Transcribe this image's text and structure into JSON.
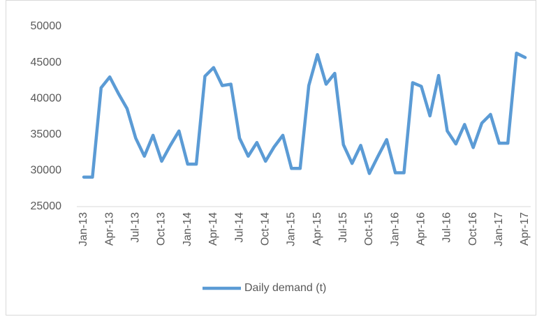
{
  "chart_data": {
    "type": "line",
    "categories": [
      "Jan-13",
      null,
      null,
      "Apr-13",
      null,
      null,
      "Jul-13",
      null,
      null,
      "Oct-13",
      null,
      null,
      "Jan-14",
      null,
      null,
      "Apr-14",
      null,
      null,
      "Jul-14",
      null,
      null,
      "Oct-14",
      null,
      null,
      "Jan-15",
      null,
      null,
      "Apr-15",
      null,
      null,
      "Jul-15",
      null,
      null,
      "Oct-15",
      null,
      null,
      "Jan-16",
      null,
      null,
      "Apr-16",
      null,
      null,
      "Jul-16",
      null,
      null,
      "Oct-16",
      null,
      null,
      "Jan-17",
      null,
      null,
      "Apr-17"
    ],
    "series": [
      {
        "name": "Daily demand (t)",
        "color": "#5b9bd5",
        "values": [
          29100,
          29100,
          41500,
          43000,
          40700,
          38600,
          34500,
          32000,
          34900,
          31300,
          33500,
          35500,
          30900,
          30900,
          43100,
          44300,
          41800,
          42000,
          34500,
          32000,
          33900,
          31300,
          33300,
          34900,
          30300,
          30300,
          41800,
          46100,
          42000,
          43500,
          33600,
          31000,
          33500,
          29600,
          32000,
          34300,
          29700,
          29700,
          42200,
          41700,
          37600,
          43200,
          35500,
          33700,
          36400,
          33200,
          36600,
          37800,
          33800,
          33800,
          46300,
          45700
        ]
      }
    ],
    "ylim": [
      25000,
      50000
    ],
    "yticks": [
      25000,
      30000,
      35000,
      40000,
      45000,
      50000
    ],
    "grid": false,
    "legend": "bottom"
  }
}
